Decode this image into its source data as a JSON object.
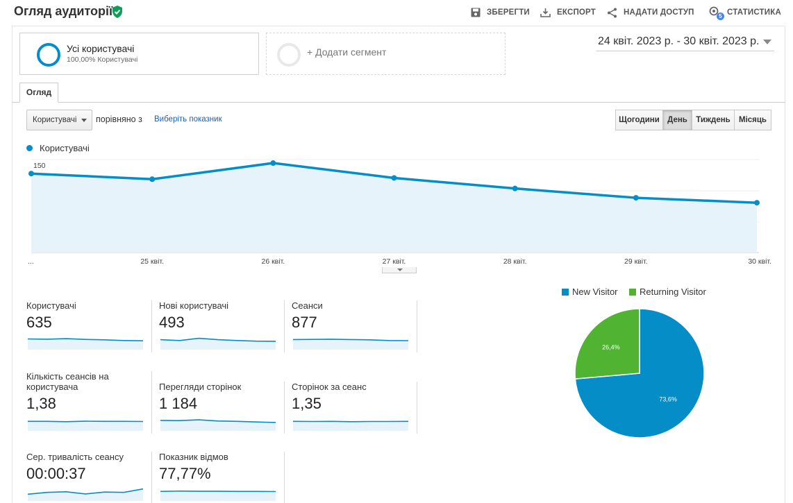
{
  "header": {
    "title": "Огляд аудиторії",
    "actions": {
      "save": "ЗБЕРЕГТИ",
      "export": "ЕКСПОРТ",
      "share": "НАДАТИ ДОСТУП",
      "insights": "СТАТИСТИКА",
      "insights_badge": "5"
    },
    "icons": {
      "verified": "check-shield-icon",
      "save": "save-icon",
      "export": "export-icon",
      "share": "share-icon",
      "insights": "insights-icon"
    }
  },
  "segments": {
    "active": {
      "title": "Усі користувачі",
      "subtitle": "100,00% Користувачі"
    },
    "add": {
      "label": "+ Додати сегмент"
    }
  },
  "date_range": {
    "label": "24 квіт. 2023 р. - 30 квіт. 2023 р."
  },
  "tabs": [
    {
      "label": "Огляд",
      "active": true
    }
  ],
  "controls": {
    "metric_select": "Користувачі",
    "compare_label": "порівняно з",
    "compare_link": "Виберіть показник",
    "periods": [
      {
        "label": "Щогодини",
        "active": false
      },
      {
        "label": "День",
        "active": true
      },
      {
        "label": "Тиждень",
        "active": false
      },
      {
        "label": "Місяць",
        "active": false
      }
    ]
  },
  "chart_data": [
    {
      "type": "line",
      "series": [
        {
          "name": "Користувачі",
          "values": [
            124,
            115,
            141,
            117,
            100,
            85,
            77
          ],
          "color": "#058dc7"
        }
      ],
      "x": [
        "...",
        "25 квіт.",
        "26 квіт.",
        "27 квіт.",
        "28 квіт.",
        "29 квіт.",
        "30 квіт."
      ],
      "yticks": [
        50,
        100,
        150
      ],
      "ylim": [
        0,
        150
      ],
      "grid": true,
      "legend": "top-left"
    },
    {
      "type": "pie",
      "categories": [
        "New Visitor",
        "Returning Visitor"
      ],
      "values": [
        73.6,
        26.4
      ],
      "labels": [
        "73,6%",
        "26,4%"
      ],
      "colors": [
        "#058dc7",
        "#50b432"
      ],
      "legend": "top"
    }
  ],
  "metrics": [
    {
      "label": "Користувачі",
      "value": "635",
      "spark": [
        60,
        58,
        62,
        57,
        54,
        50,
        48
      ]
    },
    {
      "label": "Нові користувачі",
      "value": "493",
      "spark": [
        55,
        50,
        64,
        55,
        50,
        46,
        45
      ]
    },
    {
      "label": "Сеанси",
      "value": "877",
      "spark": [
        56,
        57,
        58,
        56,
        54,
        50,
        49
      ]
    },
    {
      "label": "Кількість сеансів на користувача",
      "value": "1,38",
      "spark": [
        52,
        52,
        50,
        53,
        52,
        52,
        51
      ]
    },
    {
      "label": "Перегляди сторінок",
      "value": "1 184",
      "spark": [
        58,
        57,
        62,
        54,
        52,
        48,
        45
      ]
    },
    {
      "label": "Сторінок за сеанс",
      "value": "1,35",
      "spark": [
        52,
        51,
        52,
        50,
        51,
        51,
        52
      ]
    },
    {
      "label": "Сер. тривалість сеансу",
      "value": "00:00:37",
      "spark": [
        34,
        46,
        50,
        36,
        48,
        46,
        68
      ]
    },
    {
      "label": "Показник відмов",
      "value": "77,77%",
      "spark": [
        52,
        54,
        53,
        53,
        52,
        52,
        51
      ]
    }
  ]
}
